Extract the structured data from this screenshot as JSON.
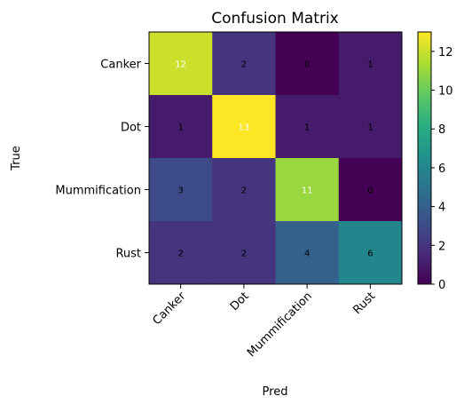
{
  "chart_data": {
    "type": "heatmap",
    "title": "Confusion Matrix",
    "xlabel": "Pred",
    "ylabel": "True",
    "x_categories": [
      "Canker",
      "Dot",
      "Mummification",
      "Rust"
    ],
    "y_categories": [
      "Canker",
      "Dot",
      "Mummification",
      "Rust"
    ],
    "values": [
      [
        12,
        2,
        0,
        1
      ],
      [
        1,
        13,
        1,
        1
      ],
      [
        3,
        2,
        11,
        0
      ],
      [
        2,
        2,
        4,
        6
      ]
    ],
    "colormap": "viridis",
    "color_range": [
      0,
      13
    ],
    "colorbar_ticks": [
      "0",
      "2",
      "4",
      "6",
      "8",
      "10",
      "12"
    ],
    "x_tick_rotation": "45 degrees",
    "legend": "colorbar-right"
  }
}
